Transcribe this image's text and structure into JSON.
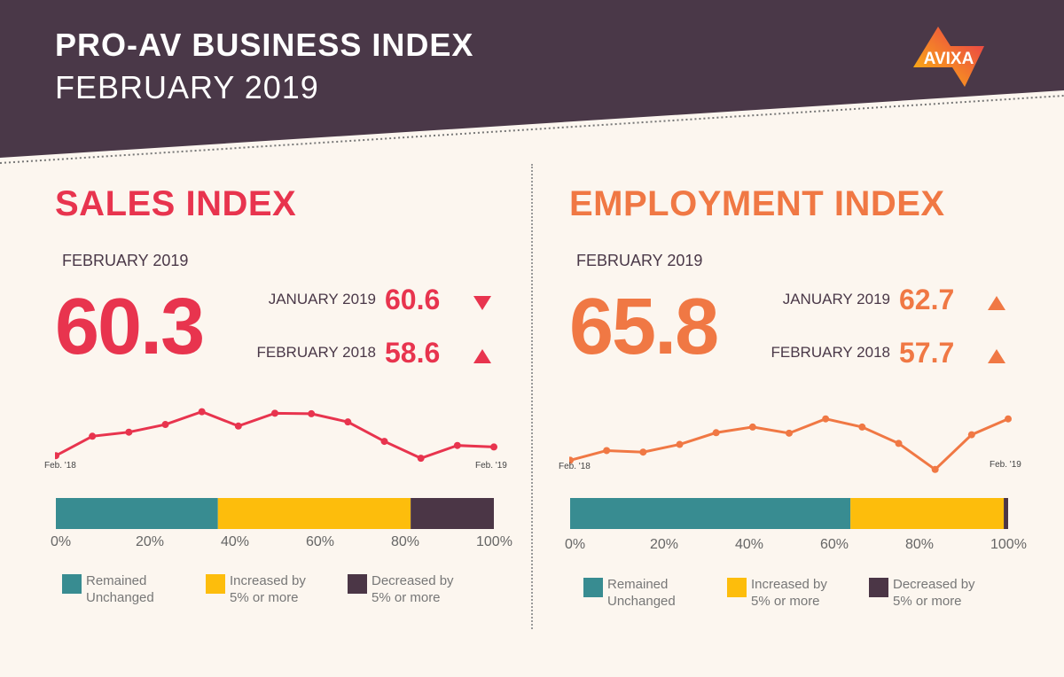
{
  "header": {
    "title": "PRO-AV BUSINESS INDEX",
    "subtitle": "FEBRUARY 2019",
    "logo_text": "AVIXA"
  },
  "colors": {
    "header_bg": "#4a3848",
    "sales": "#e8344e",
    "employment": "#f07844",
    "unchanged": "#388c91",
    "increased": "#fdbd0c",
    "decreased": "#4b3646"
  },
  "chart_data": [
    {
      "type": "line",
      "title": "SALES INDEX",
      "x_start_label": "Feb. '18",
      "x_end_label": "Feb. '19",
      "values": [
        58.6,
        62.4,
        63.2,
        64.7,
        67.2,
        64.4,
        66.9,
        66.8,
        65.2,
        61.4,
        58.1,
        60.6,
        60.3
      ]
    },
    {
      "type": "bar",
      "stacked": true,
      "orientation": "horizontal",
      "ticks": [
        "0%",
        "20%",
        "40%",
        "60%",
        "80%",
        "100%"
      ],
      "series": [
        {
          "name": "Remained Unchanged",
          "value": 37
        },
        {
          "name": "Increased by 5% or more",
          "value": 44
        },
        {
          "name": "Decreased by 5% or more",
          "value": 19
        }
      ]
    },
    {
      "type": "line",
      "title": "EMPLOYMENT INDEX",
      "x_start_label": "Feb. '18",
      "x_end_label": "Feb. '19",
      "values": [
        57.7,
        59.6,
        59.3,
        60.8,
        63.1,
        64.2,
        63.0,
        65.8,
        64.2,
        61.0,
        55.9,
        62.7,
        65.8
      ]
    },
    {
      "type": "bar",
      "stacked": true,
      "orientation": "horizontal",
      "ticks": [
        "0%",
        "20%",
        "40%",
        "60%",
        "80%",
        "100%"
      ],
      "series": [
        {
          "name": "Remained Unchanged",
          "value": 64
        },
        {
          "name": "Increased by 5% or more",
          "value": 35
        },
        {
          "name": "Decreased by 5% or more",
          "value": 1
        }
      ]
    }
  ],
  "panels": [
    {
      "title": "SALES INDEX",
      "period": "FEBRUARY 2019",
      "value": "60.3",
      "comparisons": [
        {
          "label": "JANUARY 2019",
          "value": "60.6",
          "direction": "down"
        },
        {
          "label": "FEBRUARY 2018",
          "value": "58.6",
          "direction": "up"
        }
      ],
      "legend": [
        {
          "l1": "Remained",
          "l2": "Unchanged"
        },
        {
          "l1": "Increased by",
          "l2": "5% or more"
        },
        {
          "l1": "Decreased by",
          "l2": "5% or more"
        }
      ]
    },
    {
      "title": "EMPLOYMENT INDEX",
      "period": "FEBRUARY 2019",
      "value": "65.8",
      "comparisons": [
        {
          "label": "JANUARY 2019",
          "value": "62.7",
          "direction": "up"
        },
        {
          "label": "FEBRUARY 2018",
          "value": "57.7",
          "direction": "up"
        }
      ],
      "legend": [
        {
          "l1": "Remained",
          "l2": "Unchanged"
        },
        {
          "l1": "Increased by",
          "l2": "5% or more"
        },
        {
          "l1": "Decreased by",
          "l2": "5% or more"
        }
      ]
    }
  ]
}
